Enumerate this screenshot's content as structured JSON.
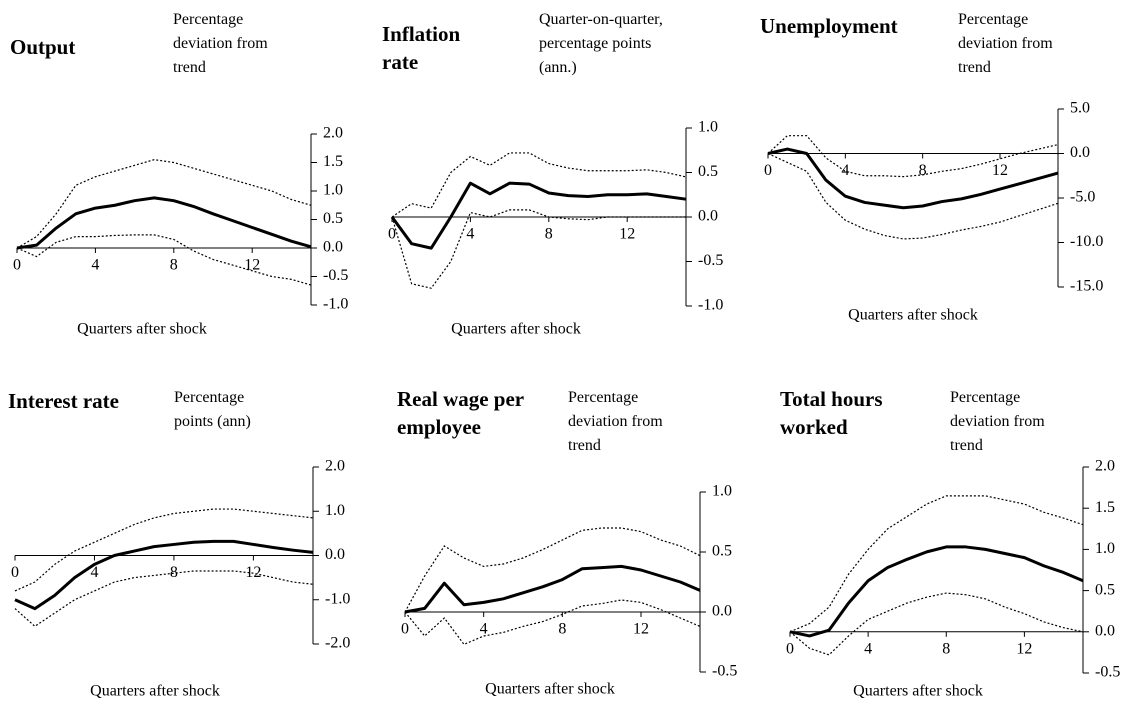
{
  "chart_data": [
    {
      "type": "line",
      "title": "Output",
      "subtitle": "Percentage deviation from trend",
      "xlabel": "Quarters after shock",
      "x": [
        0,
        1,
        2,
        3,
        4,
        5,
        6,
        7,
        8,
        9,
        10,
        11,
        12,
        13,
        14,
        15
      ],
      "xlim": [
        0,
        15
      ],
      "xticks": [
        0,
        4,
        8,
        12
      ],
      "ylim": [
        -1,
        2
      ],
      "yticks": [
        {
          "value": 2,
          "label": "2.0"
        },
        1.5,
        {
          "value": 1,
          "label": "1.0"
        },
        0.5,
        {
          "value": 0,
          "label": "0.0"
        },
        -0.5,
        {
          "value": -1,
          "label": "-1.0"
        }
      ],
      "series": [
        {
          "style": "solid",
          "color": "#000000",
          "values": [
            0,
            0.05,
            0.35,
            0.6,
            0.7,
            0.75,
            0.83,
            0.88,
            0.83,
            0.73,
            0.6,
            0.48,
            0.36,
            0.24,
            0.12,
            0.02
          ]
        },
        {
          "style": "dotted",
          "color": "#000000",
          "values": [
            0,
            0.2,
            0.6,
            1.1,
            1.25,
            1.35,
            1.45,
            1.55,
            1.5,
            1.4,
            1.3,
            1.2,
            1.1,
            1.0,
            0.85,
            0.75
          ]
        },
        {
          "style": "dotted",
          "color": "#000000",
          "values": [
            0,
            -0.15,
            0.1,
            0.2,
            0.2,
            0.22,
            0.23,
            0.23,
            0.15,
            -0.05,
            -0.2,
            -0.3,
            -0.4,
            -0.5,
            -0.55,
            -0.65
          ]
        }
      ]
    },
    {
      "type": "line",
      "title": "Inflation rate",
      "subtitle": "Quarter-on-quarter, percentage points (ann.)",
      "xlabel": "Quarters after shock",
      "x": [
        0,
        1,
        2,
        3,
        4,
        5,
        6,
        7,
        8,
        9,
        10,
        11,
        12,
        13,
        14,
        15
      ],
      "xlim": [
        0,
        15
      ],
      "xticks": [
        0,
        4,
        8,
        12
      ],
      "ylim": [
        -1,
        1
      ],
      "yticks": [
        {
          "value": 1,
          "label": "1.0"
        },
        0.5,
        {
          "value": 0,
          "label": "0.0"
        },
        -0.5,
        {
          "value": -1,
          "label": "-1.0"
        }
      ],
      "series": [
        {
          "style": "solid",
          "color": "#000000",
          "values": [
            0,
            -0.3,
            -0.35,
            0,
            0.38,
            0.26,
            0.38,
            0.37,
            0.27,
            0.24,
            0.23,
            0.25,
            0.25,
            0.26,
            0.23,
            0.2
          ]
        },
        {
          "style": "dotted",
          "color": "#000000",
          "values": [
            0,
            0.15,
            0.1,
            0.5,
            0.68,
            0.58,
            0.72,
            0.72,
            0.6,
            0.55,
            0.52,
            0.52,
            0.52,
            0.53,
            0.5,
            0.45
          ]
        },
        {
          "style": "dotted",
          "color": "#000000",
          "values": [
            0,
            -0.75,
            -0.8,
            -0.5,
            0.05,
            0,
            0.08,
            0.08,
            0,
            -0.02,
            -0.03,
            0,
            0,
            0,
            0,
            0
          ]
        }
      ]
    },
    {
      "type": "line",
      "title": "Unemployment",
      "subtitle": "Percentage deviation from trend",
      "xlabel": "Quarters after shock",
      "x": [
        0,
        1,
        2,
        3,
        4,
        5,
        6,
        7,
        8,
        9,
        10,
        11,
        12,
        13,
        14,
        15
      ],
      "xlim": [
        0,
        15
      ],
      "xticks": [
        0,
        4,
        8,
        12
      ],
      "ylim": [
        -15,
        5
      ],
      "yticks": [
        {
          "value": 5,
          "label": "5.0"
        },
        {
          "value": 0,
          "label": "0.0"
        },
        {
          "value": -5,
          "label": "-5.0"
        },
        {
          "value": -10,
          "label": "-10.0"
        },
        {
          "value": -15,
          "label": "-15.0"
        }
      ],
      "series": [
        {
          "style": "solid",
          "color": "#000000",
          "values": [
            0,
            0.5,
            0,
            -3,
            -4.8,
            -5.5,
            -5.8,
            -6.1,
            -5.9,
            -5.4,
            -5.1,
            -4.6,
            -4,
            -3.4,
            -2.8,
            -2.2
          ]
        },
        {
          "style": "dotted",
          "color": "#000000",
          "values": [
            0,
            2,
            2,
            -0.5,
            -2,
            -2.5,
            -2.5,
            -2.6,
            -2.4,
            -2,
            -1.7,
            -1.2,
            -0.6,
            0,
            0.5,
            1
          ]
        },
        {
          "style": "dotted",
          "color": "#000000",
          "values": [
            0,
            -1,
            -2,
            -5.5,
            -7.5,
            -8.5,
            -9.2,
            -9.6,
            -9.5,
            -9.1,
            -8.6,
            -8.2,
            -7.7,
            -7,
            -6.3,
            -5.6
          ]
        }
      ]
    },
    {
      "type": "line",
      "title": "Interest rate",
      "subtitle": "Percentage points (ann)",
      "xlabel": "Quarters after shock",
      "x": [
        0,
        1,
        2,
        3,
        4,
        5,
        6,
        7,
        8,
        9,
        10,
        11,
        12,
        13,
        14,
        15
      ],
      "xlim": [
        0,
        15
      ],
      "xticks": [
        0,
        4,
        8,
        12
      ],
      "ylim": [
        -2,
        2
      ],
      "yticks": [
        {
          "value": 2,
          "label": "2.0"
        },
        {
          "value": 1,
          "label": "1.0"
        },
        {
          "value": 0,
          "label": "0.0"
        },
        {
          "value": -1,
          "label": "-1.0"
        },
        {
          "value": -2,
          "label": "-2.0"
        }
      ],
      "series": [
        {
          "style": "solid",
          "color": "#000000",
          "values": [
            -1.0,
            -1.2,
            -0.9,
            -0.5,
            -0.2,
            0.0,
            0.1,
            0.2,
            0.25,
            0.3,
            0.32,
            0.32,
            0.25,
            0.18,
            0.12,
            0.07
          ]
        },
        {
          "style": "dotted",
          "color": "#000000",
          "values": [
            -0.8,
            -0.6,
            -0.2,
            0.1,
            0.3,
            0.5,
            0.7,
            0.85,
            0.95,
            1.0,
            1.05,
            1.05,
            1.0,
            0.95,
            0.9,
            0.85
          ]
        },
        {
          "style": "dotted",
          "color": "#000000",
          "values": [
            -1.2,
            -1.6,
            -1.3,
            -1.0,
            -0.8,
            -0.6,
            -0.5,
            -0.45,
            -0.4,
            -0.35,
            -0.35,
            -0.35,
            -0.4,
            -0.5,
            -0.6,
            -0.65
          ]
        }
      ]
    },
    {
      "type": "line",
      "title": "Real wage per employee",
      "subtitle": "Percentage deviation from trend",
      "xlabel": "Quarters after shock",
      "x": [
        0,
        1,
        2,
        3,
        4,
        5,
        6,
        7,
        8,
        9,
        10,
        11,
        12,
        13,
        14,
        15
      ],
      "xlim": [
        0,
        15
      ],
      "xticks": [
        0,
        4,
        8,
        12
      ],
      "ylim": [
        -0.5,
        1
      ],
      "yticks": [
        {
          "value": 1,
          "label": "1.0"
        },
        0.5,
        {
          "value": 0,
          "label": "0.0"
        },
        -0.5
      ],
      "series": [
        {
          "style": "solid",
          "color": "#000000",
          "values": [
            0,
            0.03,
            0.24,
            0.06,
            0.08,
            0.11,
            0.16,
            0.21,
            0.27,
            0.36,
            0.37,
            0.38,
            0.35,
            0.3,
            0.25,
            0.18
          ]
        },
        {
          "style": "dotted",
          "color": "#000000",
          "values": [
            0,
            0.3,
            0.55,
            0.45,
            0.38,
            0.4,
            0.45,
            0.52,
            0.6,
            0.68,
            0.7,
            0.7,
            0.67,
            0.6,
            0.55,
            0.47
          ]
        },
        {
          "style": "dotted",
          "color": "#000000",
          "values": [
            0,
            -0.2,
            -0.05,
            -0.27,
            -0.2,
            -0.17,
            -0.12,
            -0.08,
            -0.02,
            0.05,
            0.07,
            0.1,
            0.08,
            0.02,
            -0.05,
            -0.12
          ]
        }
      ]
    },
    {
      "type": "line",
      "title": "Total hours worked",
      "subtitle": "Percentage deviation from trend",
      "xlabel": "Quarters after shock",
      "x": [
        0,
        1,
        2,
        3,
        4,
        5,
        6,
        7,
        8,
        9,
        10,
        11,
        12,
        13,
        14,
        15
      ],
      "xlim": [
        0,
        15
      ],
      "xticks": [
        0,
        4,
        8,
        12
      ],
      "ylim": [
        -0.5,
        2
      ],
      "yticks": [
        {
          "value": 2,
          "label": "2.0"
        },
        1.5,
        {
          "value": 1,
          "label": "1.0"
        },
        0.5,
        {
          "value": 0,
          "label": "0.0"
        },
        -0.5
      ],
      "series": [
        {
          "style": "solid",
          "color": "#000000",
          "values": [
            0,
            -0.05,
            0.02,
            0.35,
            0.62,
            0.78,
            0.88,
            0.97,
            1.03,
            1.03,
            1.0,
            0.95,
            0.9,
            0.8,
            0.72,
            0.62
          ]
        },
        {
          "style": "dotted",
          "color": "#000000",
          "values": [
            0,
            0.1,
            0.3,
            0.7,
            1.0,
            1.25,
            1.4,
            1.55,
            1.65,
            1.65,
            1.65,
            1.6,
            1.55,
            1.45,
            1.38,
            1.3
          ]
        },
        {
          "style": "dotted",
          "color": "#000000",
          "values": [
            0,
            -0.2,
            -0.28,
            -0.05,
            0.15,
            0.25,
            0.35,
            0.42,
            0.47,
            0.45,
            0.4,
            0.3,
            0.22,
            0.12,
            0.05,
            0.0
          ]
        }
      ]
    }
  ]
}
